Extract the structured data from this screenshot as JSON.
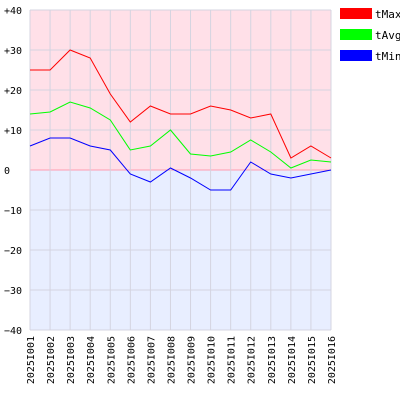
{
  "chart_data": {
    "type": "line",
    "title": "",
    "xlabel": "",
    "ylabel": "",
    "x": [
      "2025I001",
      "2025I002",
      "2025I003",
      "2025I004",
      "2025I005",
      "2025I006",
      "2025I007",
      "2025I008",
      "2025I009",
      "2025I010",
      "2025I011",
      "2025I012",
      "2025I013",
      "2025I014",
      "2025I015",
      "2025I016"
    ],
    "ylim": [
      -40,
      40
    ],
    "yticks": [
      -40,
      -30,
      -20,
      -10,
      0,
      10,
      20,
      30,
      40
    ],
    "ytick_labels": [
      "−40",
      "−30",
      "−20",
      "−10",
      "0",
      "+10",
      "+20",
      "+30",
      "+40"
    ],
    "grid": true,
    "legend_position": "right",
    "background": {
      "positive": "#ffe0e8",
      "negative": "#e8eeff"
    },
    "series": [
      {
        "name": "tMax",
        "color": "#ff0000",
        "values": [
          25,
          25,
          30,
          28,
          19,
          12,
          16,
          14,
          14,
          16,
          15,
          13,
          14,
          3,
          6,
          3
        ]
      },
      {
        "name": "tAvg",
        "color": "#00ff00",
        "values": [
          14,
          14.5,
          17,
          15.5,
          12.5,
          5,
          6,
          10,
          4,
          3.5,
          4.5,
          7.5,
          4.5,
          0.5,
          2.5,
          2
        ]
      },
      {
        "name": "tMin",
        "color": "#0000ff",
        "values": [
          6,
          8,
          8,
          6,
          5,
          -1,
          -3,
          0.5,
          -2,
          -5,
          -5,
          2,
          -1,
          -2,
          -1,
          0
        ]
      }
    ]
  }
}
